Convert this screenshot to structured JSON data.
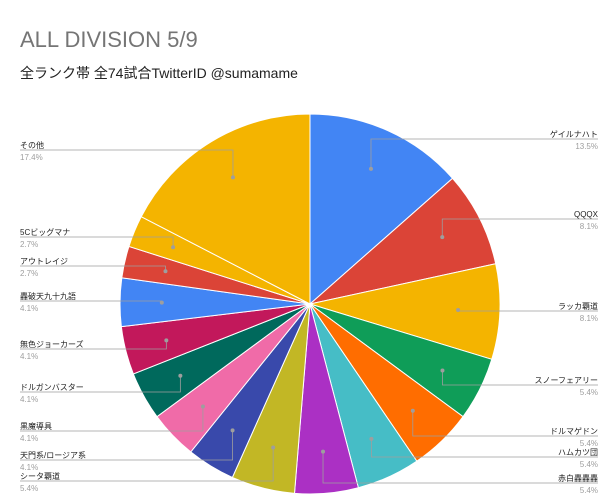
{
  "chart_data": {
    "type": "pie",
    "title": "ALL DIVISION 5/9",
    "subtitle": "全ランク帯 全74試合TwitterID @sumamame",
    "slices": [
      {
        "name": "ゲイルナハト",
        "pct": "13.5%",
        "value": 13.5,
        "color": "#4285f4",
        "side": "right"
      },
      {
        "name": "QQQX",
        "pct": "8.1%",
        "value": 8.1,
        "color": "#db4437",
        "side": "right"
      },
      {
        "name": "ラッカ覇道",
        "pct": "8.1%",
        "value": 8.1,
        "color": "#f4b400",
        "side": "right"
      },
      {
        "name": "スノーフェアリー",
        "pct": "5.4%",
        "value": 5.4,
        "color": "#0f9d58",
        "side": "right"
      },
      {
        "name": "ドルマゲドン",
        "pct": "5.4%",
        "value": 5.4,
        "color": "#ff6d00",
        "side": "right"
      },
      {
        "name": "ハムカツ団",
        "pct": "5.4%",
        "value": 5.4,
        "color": "#46bdc6",
        "side": "right"
      },
      {
        "name": "赤白轟轟轟",
        "pct": "5.4%",
        "value": 5.4,
        "color": "#ab30c4",
        "side": "right"
      },
      {
        "name": "シータ覇道",
        "pct": "5.4%",
        "value": 5.4,
        "color": "#c2b725",
        "side": "left"
      },
      {
        "name": "天門系/ロージア系",
        "pct": "4.1%",
        "value": 4.1,
        "color": "#3949ab",
        "side": "left"
      },
      {
        "name": "黒魔導具",
        "pct": "4.1%",
        "value": 4.1,
        "color": "#f06ba8",
        "side": "left"
      },
      {
        "name": "ドルガンバスター",
        "pct": "4.1%",
        "value": 4.1,
        "color": "#00695c",
        "side": "left"
      },
      {
        "name": "無色ジョーカーズ",
        "pct": "4.1%",
        "value": 4.1,
        "color": "#c2185b",
        "side": "left"
      },
      {
        "name": "轟破天九十九語",
        "pct": "4.1%",
        "value": 4.1,
        "color": "#4285f4",
        "side": "left"
      },
      {
        "name": "アウトレイジ",
        "pct": "2.7%",
        "value": 2.7,
        "color": "#db4437",
        "side": "left"
      },
      {
        "name": "5Cビッグマナ",
        "pct": "2.7%",
        "value": 2.7,
        "color": "#f4b400",
        "side": "left"
      },
      {
        "name": "その他",
        "pct": "17.4%",
        "value": 17.4,
        "color": "#f4b400",
        "side": "left"
      }
    ],
    "legend": "none"
  }
}
